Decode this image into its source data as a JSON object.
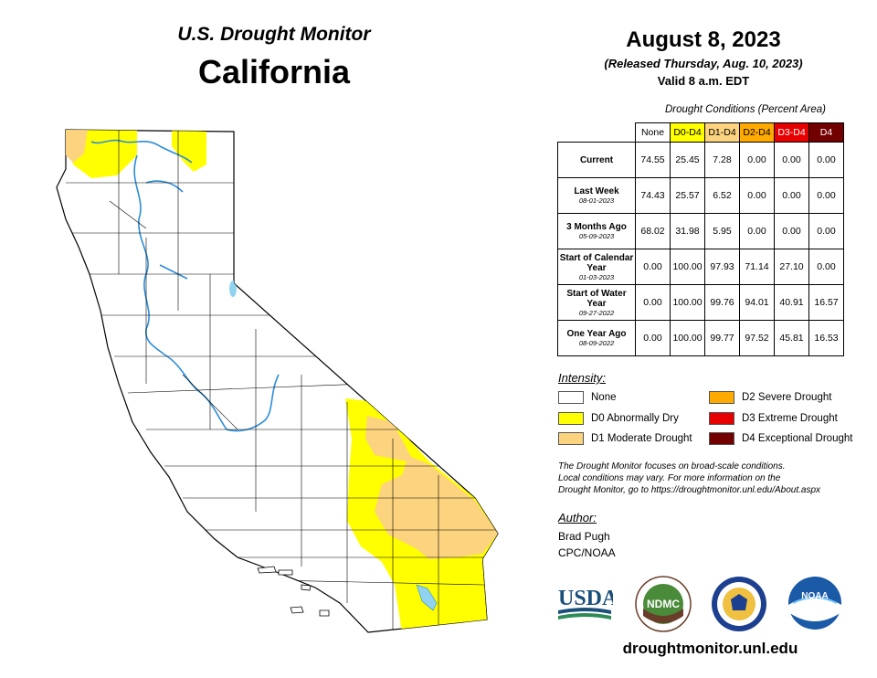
{
  "header": {
    "map_title": "U.S. Drought Monitor",
    "state": "California",
    "date": "August 8, 2023",
    "release": "(Released Thursday, Aug. 10, 2023)",
    "valid": "Valid 8 a.m. EDT"
  },
  "table": {
    "caption": "Drought Conditions (Percent Area)",
    "columns": [
      "None",
      "D0-D4",
      "D1-D4",
      "D2-D4",
      "D3-D4",
      "D4"
    ],
    "rows": [
      {
        "label": "Current",
        "date": "",
        "values": [
          "74.55",
          "25.45",
          "7.28",
          "0.00",
          "0.00",
          "0.00"
        ]
      },
      {
        "label": "Last Week",
        "date": "08-01-2023",
        "values": [
          "74.43",
          "25.57",
          "6.52",
          "0.00",
          "0.00",
          "0.00"
        ]
      },
      {
        "label": "3 Months Ago",
        "date": "05-09-2023",
        "values": [
          "68.02",
          "31.98",
          "5.95",
          "0.00",
          "0.00",
          "0.00"
        ]
      },
      {
        "label": "Start of Calendar Year",
        "date": "01-03-2023",
        "values": [
          "0.00",
          "100.00",
          "97.93",
          "71.14",
          "27.10",
          "0.00"
        ]
      },
      {
        "label": "Start of Water Year",
        "date": "09-27-2022",
        "values": [
          "0.00",
          "100.00",
          "99.76",
          "94.01",
          "40.91",
          "16.57"
        ]
      },
      {
        "label": "One Year Ago",
        "date": "08-09-2022",
        "values": [
          "0.00",
          "100.00",
          "99.77",
          "97.52",
          "45.81",
          "16.53"
        ]
      }
    ]
  },
  "legend": {
    "heading": "Intensity:",
    "items": [
      {
        "label": "None",
        "color": "#ffffff"
      },
      {
        "label": "D0 Abnormally Dry",
        "color": "#ffff00"
      },
      {
        "label": "D1 Moderate Drought",
        "color": "#fcd37f"
      },
      {
        "label": "D2 Severe Drought",
        "color": "#ffaa00"
      },
      {
        "label": "D3 Extreme Drought",
        "color": "#e60000"
      },
      {
        "label": "D4 Exceptional Drought",
        "color": "#730000"
      }
    ]
  },
  "disclaimer": {
    "line1": "The Drought Monitor focuses on broad-scale conditions.",
    "line2": "Local conditions may vary. For more information on the",
    "line3": "Drought Monitor, go to https://droughtmonitor.unl.edu/About.aspx"
  },
  "author": {
    "heading": "Author:",
    "name": "Brad Pugh",
    "org": "CPC/NOAA"
  },
  "logos": {
    "usda": "USDA",
    "ndmc": "NDMC",
    "noaa": "NOAA"
  },
  "footer": {
    "url": "droughtmonitor.unl.edu"
  },
  "colors": {
    "d0": "#ffff00",
    "d1": "#fcd37f",
    "water": "#2b8cd8",
    "lake": "#8fd3f0"
  }
}
